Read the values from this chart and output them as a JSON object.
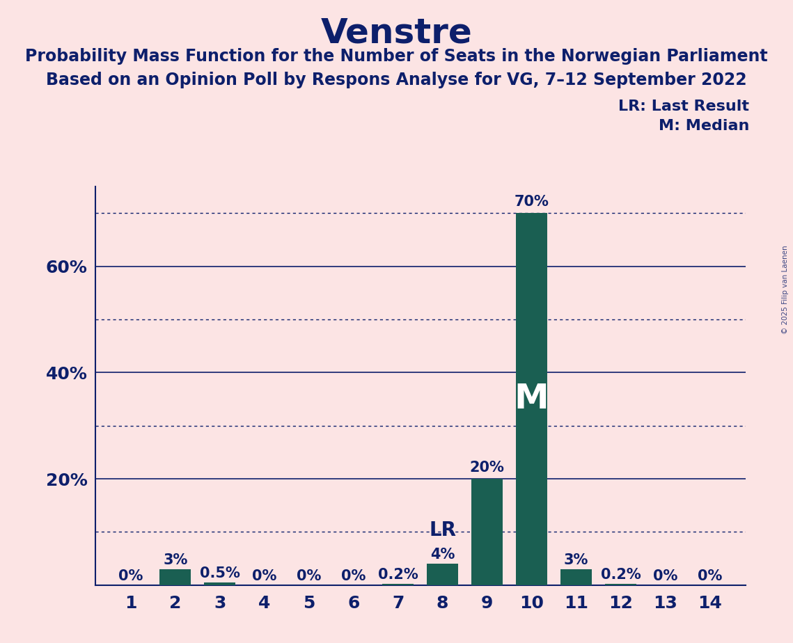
{
  "title": "Venstre",
  "subtitle_line1": "Probability Mass Function for the Number of Seats in the Norwegian Parliament",
  "subtitle_line2": "Based on an Opinion Poll by Respons Analyse for VG, 7–12 September 2022",
  "copyright": "© 2025 Filip van Laenen",
  "seats": [
    1,
    2,
    3,
    4,
    5,
    6,
    7,
    8,
    9,
    10,
    11,
    12,
    13,
    14
  ],
  "probabilities": [
    0.0,
    3.0,
    0.5,
    0.0,
    0.0,
    0.0,
    0.2,
    4.0,
    20.0,
    70.0,
    3.0,
    0.2,
    0.0,
    0.0
  ],
  "labels": [
    "0%",
    "3%",
    "0.5%",
    "0%",
    "0%",
    "0%",
    "0.2%",
    "4%",
    "20%",
    "70%",
    "3%",
    "0.2%",
    "0%",
    "0%"
  ],
  "lr_seat": 8,
  "median_seat": 10,
  "bar_color": "#1a5f52",
  "background_color": "#fce4e4",
  "text_color": "#0d1f6b",
  "ylim": [
    0,
    75
  ],
  "solid_yticks": [
    20,
    40,
    60
  ],
  "dotted_yticks": [
    10,
    30,
    50,
    70
  ],
  "title_fontsize": 36,
  "subtitle_fontsize": 17,
  "label_fontsize": 15,
  "tick_fontsize": 18,
  "lr_label_fontsize": 20,
  "median_label_fontsize": 36,
  "legend_fontsize": 16
}
